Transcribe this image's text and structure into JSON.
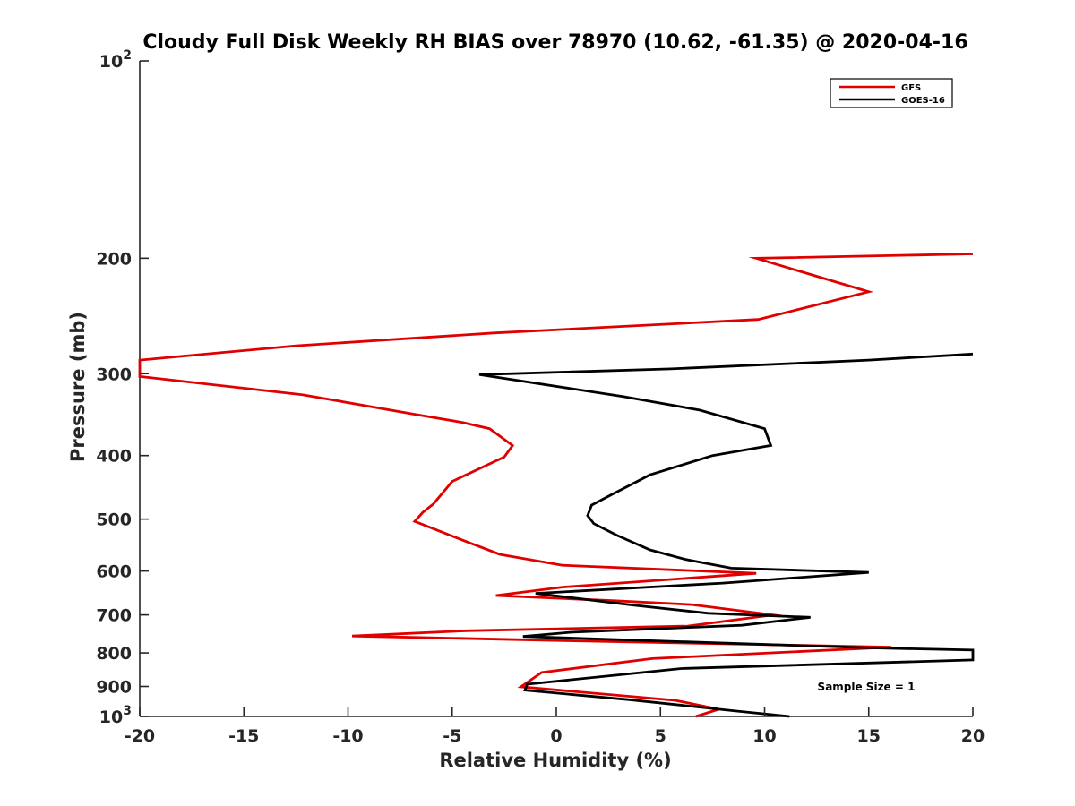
{
  "chart_data": {
    "type": "line",
    "title": "Cloudy Full Disk Weekly RH BIAS over 78970 (10.62, -61.35) @ 2020-04-16",
    "xlabel": "Relative Humidity (%)",
    "ylabel": "Pressure (mb)",
    "xlim": [
      -20,
      20
    ],
    "ylim": [
      100,
      1000
    ],
    "yscale": "log",
    "y_reversed": true,
    "grid": false,
    "legend_position": "top-right",
    "x_ticks": [
      "-20",
      "-15",
      "-10",
      "-5",
      "0",
      "5",
      "10",
      "15",
      "20"
    ],
    "y_ticks": [
      {
        "value": 100,
        "label": "10",
        "sup": "2"
      },
      {
        "value": 200,
        "label": "200"
      },
      {
        "value": 300,
        "label": "300"
      },
      {
        "value": 400,
        "label": "400"
      },
      {
        "value": 500,
        "label": "500"
      },
      {
        "value": 600,
        "label": "600"
      },
      {
        "value": 700,
        "label": "700"
      },
      {
        "value": 800,
        "label": "800"
      },
      {
        "value": 900,
        "label": "900"
      },
      {
        "value": 1000,
        "label": "10",
        "sup": "3"
      }
    ],
    "series": [
      {
        "name": "GFS",
        "color": "#e00000",
        "points": [
          [
            20.0,
            197
          ],
          [
            9.6,
            200
          ],
          [
            15.0,
            225
          ],
          [
            9.7,
            248
          ],
          [
            -3.0,
            260
          ],
          [
            -12.5,
            272
          ],
          [
            -20.0,
            286
          ],
          [
            -20.0,
            303
          ],
          [
            -12.2,
            323
          ],
          [
            -6.8,
            346
          ],
          [
            -4.5,
            356
          ],
          [
            -3.2,
            364
          ],
          [
            -2.1,
            386
          ],
          [
            -2.5,
            402
          ],
          [
            -5.0,
            438
          ],
          [
            -5.9,
            474
          ],
          [
            -6.4,
            488
          ],
          [
            -6.8,
            504
          ],
          [
            -4.4,
            540
          ],
          [
            -2.7,
            566
          ],
          [
            0.3,
            588
          ],
          [
            9.6,
            605
          ],
          [
            0.3,
            635
          ],
          [
            -2.9,
            654
          ],
          [
            2.8,
            666
          ],
          [
            6.5,
            675
          ],
          [
            10.4,
            700
          ],
          [
            6.3,
            728
          ],
          [
            -4.3,
            740
          ],
          [
            -9.8,
            754
          ],
          [
            0.3,
            766
          ],
          [
            16.1,
            784
          ],
          [
            4.6,
            816
          ],
          [
            -0.7,
            857
          ],
          [
            -1.7,
            901
          ],
          [
            5.7,
            945
          ],
          [
            7.8,
            975
          ],
          [
            6.7,
            1000
          ]
        ]
      },
      {
        "name": "GOES-16",
        "color": "#000000",
        "points": [
          [
            20.0,
            280
          ],
          [
            15.0,
            286
          ],
          [
            5.5,
            295
          ],
          [
            -3.7,
            301
          ],
          [
            3.2,
            325
          ],
          [
            6.9,
            341
          ],
          [
            10.0,
            364
          ],
          [
            10.3,
            386
          ],
          [
            7.5,
            400
          ],
          [
            4.5,
            428
          ],
          [
            2.7,
            458
          ],
          [
            1.7,
            476
          ],
          [
            1.5,
            494
          ],
          [
            1.8,
            508
          ],
          [
            2.9,
            529
          ],
          [
            4.5,
            557
          ],
          [
            6.2,
            576
          ],
          [
            8.4,
            594
          ],
          [
            15.0,
            603
          ],
          [
            8.0,
            626
          ],
          [
            -1.0,
            649
          ],
          [
            3.6,
            676
          ],
          [
            7.3,
            696
          ],
          [
            12.2,
            706
          ],
          [
            8.9,
            726
          ],
          [
            0.7,
            744
          ],
          [
            -1.6,
            755
          ],
          [
            15.0,
            786
          ],
          [
            20.0,
            792
          ],
          [
            20.0,
            820
          ],
          [
            6.0,
            845
          ],
          [
            -1.4,
            893
          ],
          [
            -1.5,
            912
          ],
          [
            3.5,
            943
          ],
          [
            8.5,
            980
          ],
          [
            11.2,
            1000
          ]
        ]
      }
    ],
    "annotations": [
      {
        "text": "Sample Size = 1",
        "x": 15,
        "y": 900
      }
    ]
  }
}
